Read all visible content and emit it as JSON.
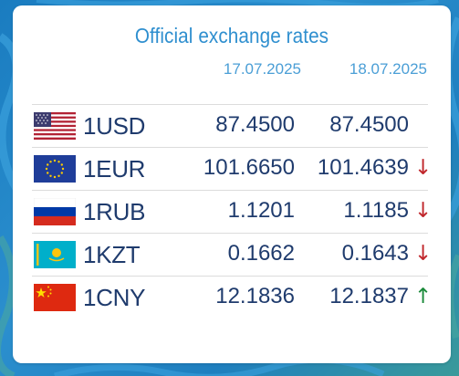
{
  "title": "Official exchange rates",
  "dates": [
    "17.07.2025",
    "18.07.2025"
  ],
  "rates": [
    {
      "code": "1USD",
      "flag": "us-flag-icon",
      "value_1": "87.4500",
      "value_2": "87.4500",
      "trend": "",
      "trend_dir": "none"
    },
    {
      "code": "1EUR",
      "flag": "eu-flag-icon",
      "value_1": "101.6650",
      "value_2": "101.4639",
      "trend": "↓",
      "trend_dir": "down"
    },
    {
      "code": "1RUB",
      "flag": "ru-flag-icon",
      "value_1": "1.1201",
      "value_2": "1.1185",
      "trend": "↓",
      "trend_dir": "down"
    },
    {
      "code": "1KZT",
      "flag": "kz-flag-icon",
      "value_1": "0.1662",
      "value_2": "0.1643",
      "trend": "↓",
      "trend_dir": "down"
    },
    {
      "code": "1CNY",
      "flag": "cn-flag-icon",
      "value_1": "12.1836",
      "value_2": "12.1837",
      "trend": "↑",
      "trend_dir": "up"
    }
  ],
  "colors": {
    "title": "#2f8fcf",
    "text": "#1f3b6d",
    "down": "#c0262b",
    "up": "#1a8a3a"
  }
}
